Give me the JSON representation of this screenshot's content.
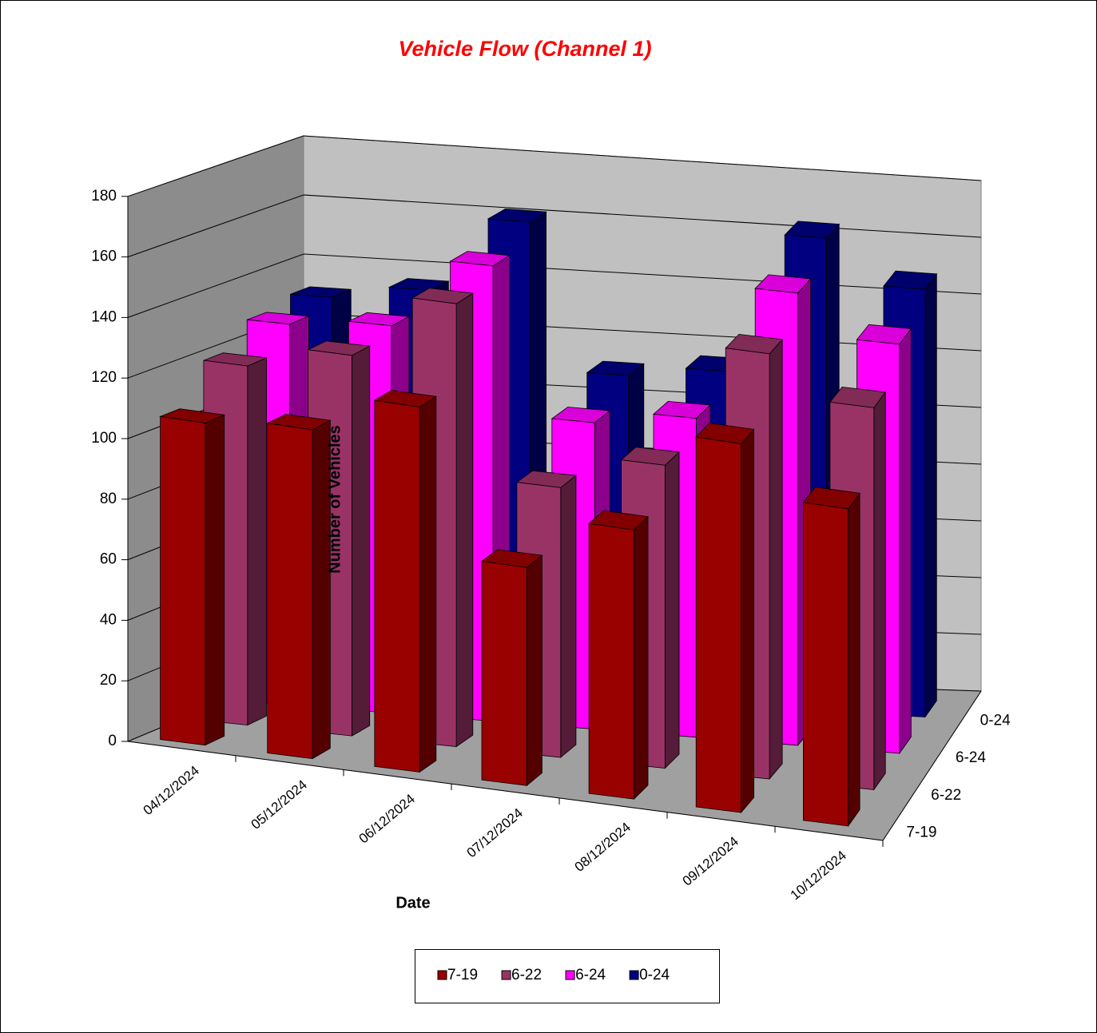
{
  "chart_data": {
    "type": "bar3d",
    "title": "Vehicle Flow (Channel 1)",
    "x_label": "Date",
    "y_label": "Number of Vehicles",
    "categories": [
      "04/12/2024",
      "05/12/2024",
      "06/12/2024",
      "07/12/2024",
      "08/12/2024",
      "09/12/2024",
      "10/12/2024"
    ],
    "series": [
      {
        "name": "7-19",
        "color": "#990000",
        "values": [
          107,
          110,
          123,
          74,
          92,
          127,
          110
        ]
      },
      {
        "name": "6-22",
        "color": "#993366",
        "values": [
          120,
          128,
          150,
          92,
          104,
          147,
          133
        ]
      },
      {
        "name": "6-24",
        "color": "#ff00ff",
        "values": [
          128,
          131,
          155,
          105,
          110,
          157,
          143
        ]
      },
      {
        "name": "0-24",
        "color": "#000080",
        "values": [
          131,
          136,
          162,
          112,
          116,
          165,
          150
        ]
      }
    ],
    "ylim": [
      0,
      180
    ],
    "yticks": [
      0,
      20,
      40,
      60,
      80,
      100,
      120,
      140,
      160,
      180
    ],
    "grid": true,
    "legend": "bottom"
  }
}
